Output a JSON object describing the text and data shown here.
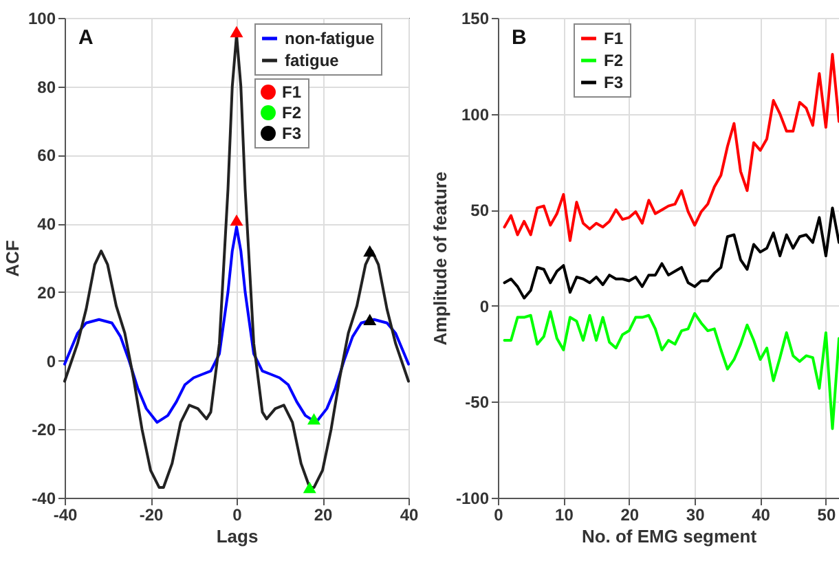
{
  "chart_data": [
    {
      "type": "line",
      "xlabel": "Lags",
      "ylabel": "ACF",
      "annotations": [
        "A"
      ],
      "xlim": [
        -40,
        40
      ],
      "ylim": [
        -40,
        100
      ],
      "xticks": [
        -40,
        -20,
        0,
        20,
        40
      ],
      "yticks": [
        -40,
        -20,
        0,
        20,
        40,
        60,
        80,
        100
      ],
      "grid": true,
      "legend": "top right",
      "line_style": "solid",
      "series": [
        {
          "name": "non-fatigue",
          "color": "#0000ff",
          "x": [
            -40,
            -37,
            -35,
            -32,
            -29,
            -27,
            -25,
            -23,
            -21,
            -18.5,
            -16,
            -14,
            -12,
            -10,
            -8,
            -6,
            -4,
            -2,
            -1,
            0,
            1,
            2,
            4,
            6,
            8,
            10,
            12,
            14,
            16,
            18.5,
            21,
            23,
            25,
            27,
            29,
            32,
            35,
            37,
            40
          ],
          "values": [
            -1,
            8,
            11,
            12,
            11,
            7,
            0,
            -8,
            -14,
            -18,
            -16,
            -12,
            -7,
            -5,
            -4,
            -3,
            2,
            20,
            32,
            39,
            32,
            20,
            2,
            -3,
            -4,
            -5,
            -7,
            -12,
            -16,
            -18,
            -14,
            -8,
            0,
            7,
            11,
            12,
            11,
            8,
            -1
          ]
        },
        {
          "name": "fatigue",
          "color": "#222222",
          "x": [
            -40,
            -37,
            -35,
            -33,
            -31.5,
            -30,
            -28,
            -26,
            -24,
            -22,
            -20,
            -18,
            -17,
            -15,
            -13,
            -11,
            -9,
            -7,
            -6,
            -4,
            -2,
            -1,
            0,
            1,
            2,
            4,
            6,
            7,
            9,
            11,
            13,
            15,
            17,
            18,
            20,
            22,
            24,
            26,
            28,
            30,
            31.5,
            33,
            35,
            37,
            40
          ],
          "values": [
            -6,
            5,
            15,
            28,
            32,
            28,
            16,
            8,
            -5,
            -20,
            -32,
            -37,
            -37,
            -30,
            -18,
            -13,
            -14,
            -17,
            -15,
            5,
            50,
            80,
            95,
            80,
            50,
            5,
            -15,
            -17,
            -14,
            -13,
            -18,
            -30,
            -37,
            -37,
            -32,
            -20,
            -5,
            8,
            16,
            28,
            32,
            28,
            15,
            5,
            -6
          ]
        },
        {
          "name": "F1",
          "color": "#ff0000",
          "type": "scatter",
          "marker": "triangle",
          "x": [
            0,
            0
          ],
          "values": [
            96,
            41
          ]
        },
        {
          "name": "F2",
          "color": "#00ff00",
          "type": "scatter",
          "marker": "triangle",
          "x": [
            18,
            17
          ],
          "values": [
            -17,
            -37
          ]
        },
        {
          "name": "F3",
          "color": "#000000",
          "type": "scatter",
          "marker": "triangle",
          "x": [
            31,
            31
          ],
          "values": [
            32,
            12
          ]
        }
      ]
    },
    {
      "type": "line",
      "xlabel": "No. of EMG segment",
      "ylabel": "Amplitude of feature",
      "annotations": [
        "B"
      ],
      "xlim": [
        0,
        52
      ],
      "ylim": [
        -100,
        150
      ],
      "xticks": [
        0,
        10,
        20,
        30,
        40,
        50
      ],
      "yticks": [
        -100,
        -50,
        0,
        50,
        100,
        150
      ],
      "grid": true,
      "legend": "top left",
      "line_style": "solid",
      "x": [
        1,
        2,
        3,
        4,
        5,
        6,
        7,
        8,
        9,
        10,
        11,
        12,
        13,
        14,
        15,
        16,
        17,
        18,
        19,
        20,
        21,
        22,
        23,
        24,
        25,
        26,
        27,
        28,
        29,
        30,
        31,
        32,
        33,
        34,
        35,
        36,
        37,
        38,
        39,
        40,
        41,
        42,
        43,
        44,
        45,
        46,
        47,
        48,
        49,
        50,
        51,
        52
      ],
      "series": [
        {
          "name": "F1",
          "color": "#ff0000",
          "values": [
            41,
            47,
            37,
            44,
            37,
            51,
            52,
            42,
            48,
            58,
            34,
            54,
            43,
            40,
            43,
            41,
            44,
            50,
            45,
            46,
            49,
            43,
            55,
            48,
            50,
            52,
            53,
            60,
            49,
            42,
            49,
            53,
            62,
            68,
            83,
            95,
            70,
            60,
            85,
            81,
            87,
            107,
            100,
            91,
            91,
            106,
            103,
            94,
            121,
            93,
            131,
            96
          ]
        },
        {
          "name": "F2",
          "color": "#00ff00",
          "values": [
            -18,
            -18,
            -6,
            -6,
            -5,
            -20,
            -16,
            -3,
            -17,
            -23,
            -6,
            -8,
            -18,
            -5,
            -18,
            -6,
            -19,
            -22,
            -15,
            -13,
            -6,
            -6,
            -5,
            -12,
            -23,
            -18,
            -20,
            -13,
            -12,
            -4,
            -9,
            -13,
            -12,
            -23,
            -33,
            -28,
            -20,
            -10,
            -18,
            -28,
            -22,
            -39,
            -27,
            -14,
            -26,
            -29,
            -26,
            -27,
            -43,
            -14,
            -64,
            -17
          ]
        },
        {
          "name": "F3",
          "color": "#000000",
          "values": [
            12,
            14,
            10,
            4,
            8,
            20,
            19,
            12,
            18,
            21,
            7,
            15,
            14,
            12,
            15,
            11,
            16,
            14,
            14,
            13,
            15,
            10,
            16,
            16,
            22,
            16,
            18,
            20,
            12,
            10,
            13,
            13,
            17,
            20,
            36,
            37,
            24,
            19,
            32,
            28,
            30,
            38,
            26,
            37,
            30,
            36,
            37,
            33,
            46,
            26,
            51,
            33
          ]
        }
      ]
    }
  ]
}
